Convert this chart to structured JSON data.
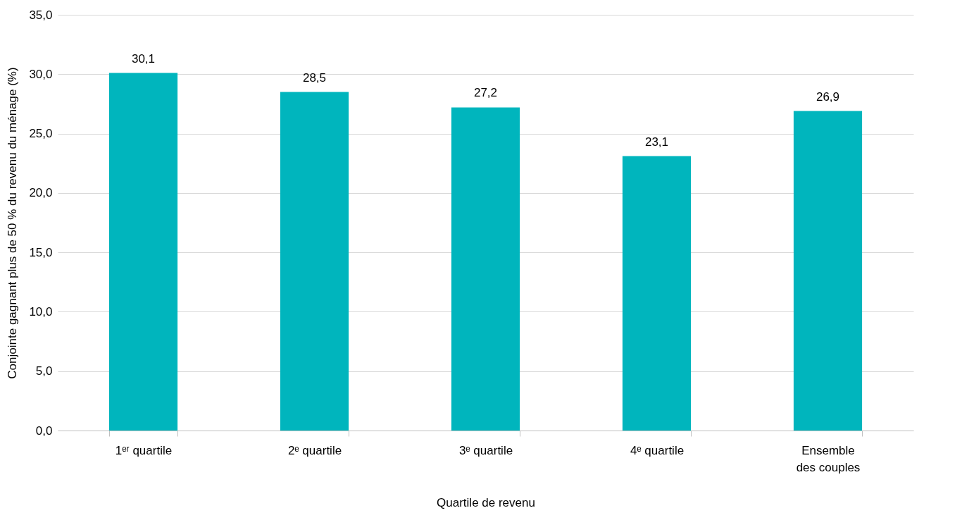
{
  "chart_data": {
    "type": "bar",
    "xlabel": "Quartile de revenu",
    "ylabel": "Conjointe gagnant plus de 50 % du revenu du ménage (%)",
    "categories": [
      "1ᵉʳ quartile",
      "2ᵉ quartile",
      "3ᵉ quartile",
      "4ᵉ quartile",
      "Ensemble des couples"
    ],
    "values": [
      30.1,
      28.5,
      27.2,
      23.1,
      26.9
    ],
    "color": "#00b5bd",
    "value_labels": [
      "30,1",
      "28,5",
      "27,2",
      "23,1",
      "26,9"
    ],
    "ylim": [
      0,
      35
    ],
    "yticks": [
      {
        "value": 0,
        "label": "0,0"
      },
      {
        "value": 5,
        "label": "5,0"
      },
      {
        "value": 10,
        "label": "10,0"
      },
      {
        "value": 15,
        "label": "15,0"
      },
      {
        "value": 20,
        "label": "20,0"
      },
      {
        "value": 25,
        "label": "25,0"
      },
      {
        "value": 30,
        "label": "30,0"
      },
      {
        "value": 35,
        "label": "35,0"
      }
    ],
    "grid": "y"
  }
}
